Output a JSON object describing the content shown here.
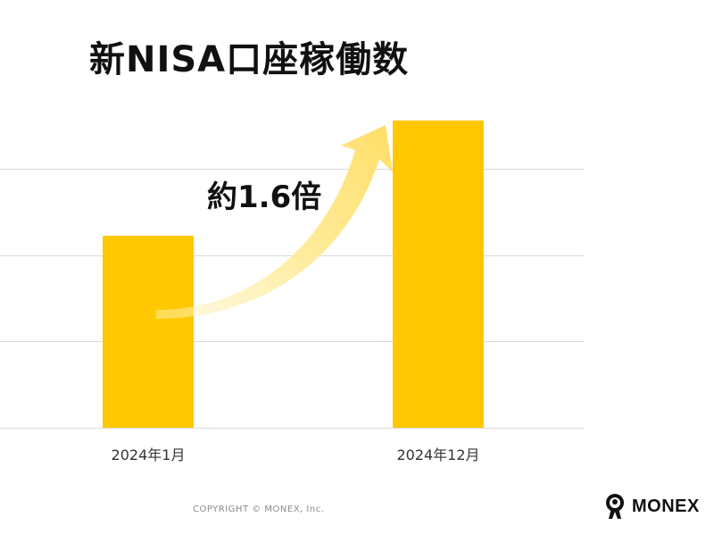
{
  "title": "新NISA口座稼働数",
  "chart_data": {
    "type": "bar",
    "title": "新NISA口座稼働数",
    "categories": [
      "2024年1月",
      "2024年12月"
    ],
    "values": [
      1.0,
      1.6
    ],
    "ylim": [
      0,
      2.0
    ],
    "grid": true,
    "bar_color": "#FFC800",
    "annotation": "約1.6倍"
  },
  "footer": {
    "copyright": "COPYRIGHT © MONEX, Inc.",
    "logo_text": "MONEX"
  },
  "colors": {
    "bar": "#FFC800",
    "arrow": "#FFE27A",
    "grid": "#d9d9d9",
    "text": "#111111"
  }
}
